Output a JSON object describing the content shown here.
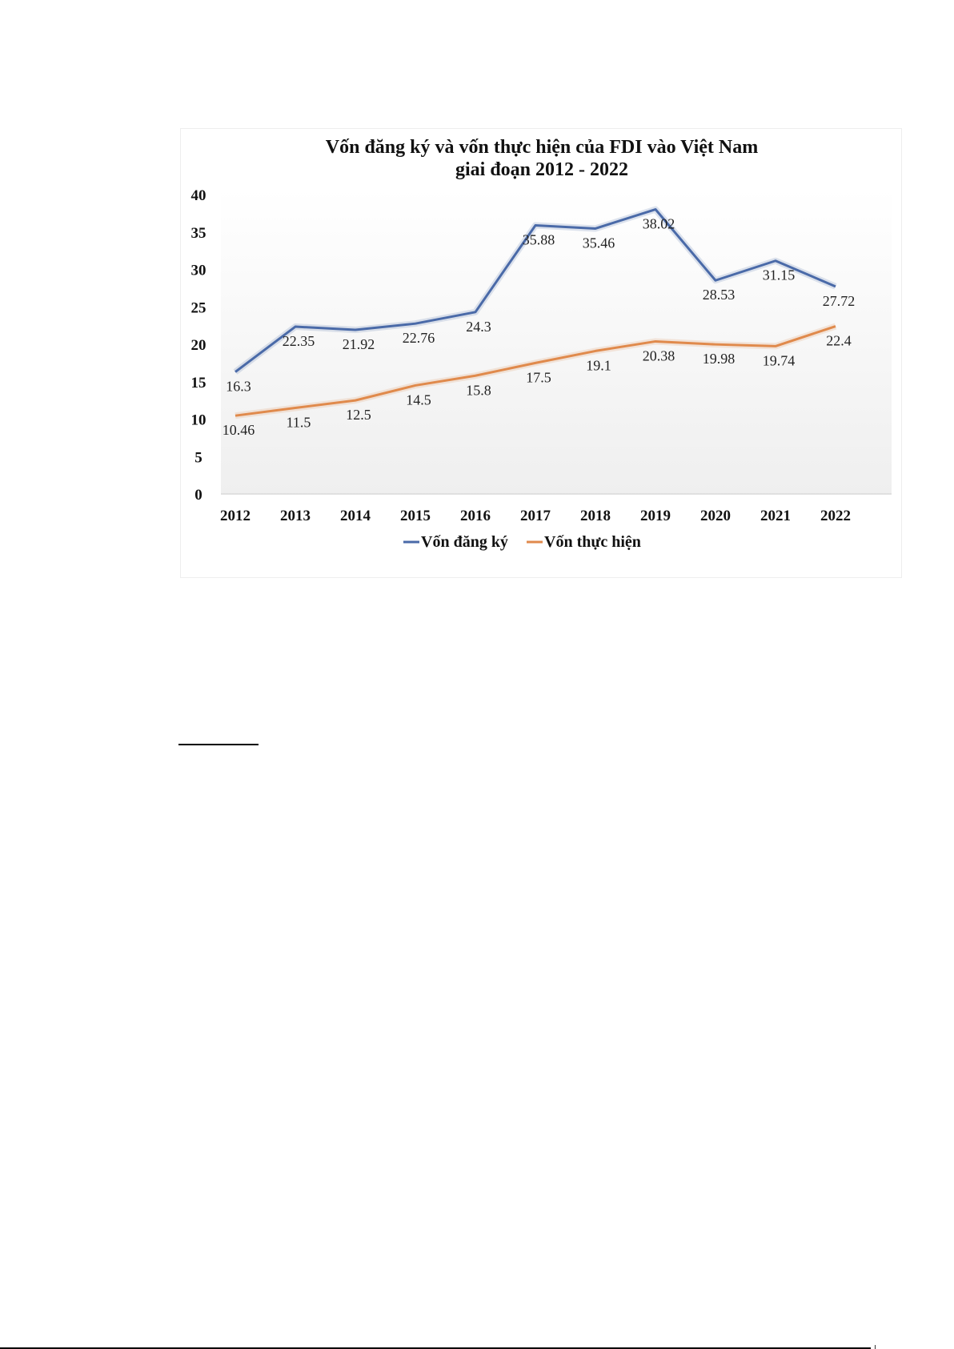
{
  "chart_data": {
    "type": "line",
    "title_line1": "Vốn đăng ký và vốn thực hiện của FDI vào Việt Nam",
    "title_line2": "giai đoạn 2012 - 2022",
    "xlabel": "",
    "ylabel": "",
    "ylim": [
      0,
      40
    ],
    "yticks": [
      "0",
      "5",
      "10",
      "15",
      "20",
      "25",
      "30",
      "35",
      "40"
    ],
    "categories": [
      "2012",
      "2013",
      "2014",
      "2015",
      "2016",
      "2017",
      "2018",
      "2019",
      "2020",
      "2021",
      "2022"
    ],
    "series": [
      {
        "name": "Vốn đăng ký",
        "color": "#4a6aa8",
        "values": [
          16.3,
          22.35,
          21.92,
          22.76,
          24.3,
          35.88,
          35.46,
          38.02,
          28.53,
          31.15,
          27.72
        ],
        "labels": [
          "16.3",
          "22.35",
          "21.92",
          "22.76",
          "24.3",
          "35.88",
          "35.46",
          "38.02",
          "28.53",
          "31.15",
          "27.72"
        ]
      },
      {
        "name": "Vốn thực hiện",
        "color": "#e08a4c",
        "values": [
          10.46,
          11.5,
          12.5,
          14.5,
          15.8,
          17.5,
          19.1,
          20.38,
          19.98,
          19.74,
          22.4
        ],
        "labels": [
          "10.46",
          "11.5",
          "12.5",
          "14.5",
          "15.8",
          "17.5",
          "19.1",
          "20.38",
          "19.98",
          "19.74",
          "22.4"
        ]
      }
    ],
    "grid": false,
    "legend": "bottom"
  }
}
